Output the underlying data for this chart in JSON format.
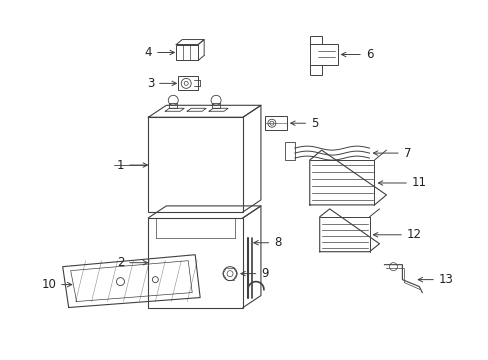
{
  "background_color": "#ffffff",
  "line_color": "#404040",
  "label_color": "#222222",
  "fig_width": 4.89,
  "fig_height": 3.6,
  "dpi": 100
}
